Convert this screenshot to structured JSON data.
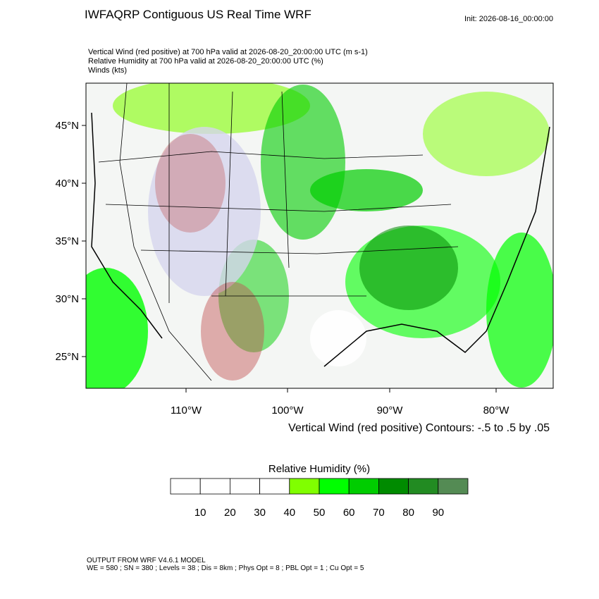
{
  "title": "IWFAQRP Contiguous US Real Time WRF",
  "init": "Init: 2026-08-16_00:00:00",
  "fields": [
    "Vertical Wind (red positive) at 700 hPa valid at 2026-08-20_20:00:00 UTC   (m s-1)",
    "Relative Humidity at 700 hPa valid at 2026-08-20_20:00:00 UTC   (%)",
    "Winds   (kts)"
  ],
  "lat_labels": [
    "45°N",
    "40°N",
    "35°N",
    "30°N",
    "25°N"
  ],
  "lon_labels": [
    "110°W",
    "100°W",
    "90°W",
    "80°W"
  ],
  "contour_note": "Vertical Wind (red positive) Contours: -.5 to .5 by .05",
  "colorbar": {
    "title": "Relative Humidity  (%)",
    "labels": [
      10,
      20,
      30,
      40,
      50,
      60,
      70,
      80,
      90
    ],
    "colors": [
      "#ffffff",
      "#ffffff",
      "#ffffff",
      "#ffffff",
      "#80ff00",
      "#00ff00",
      "#00cd00",
      "#008b00",
      "#228b22",
      "#548b54"
    ]
  },
  "footer": [
    "OUTPUT FROM WRF V4.6.1 MODEL",
    "WE = 580 ; SN = 380 ; Levels = 38 ; Dis = 8km ; Phys Opt = 8 ; PBL Opt = 1 ; Cu Opt = 5"
  ]
}
